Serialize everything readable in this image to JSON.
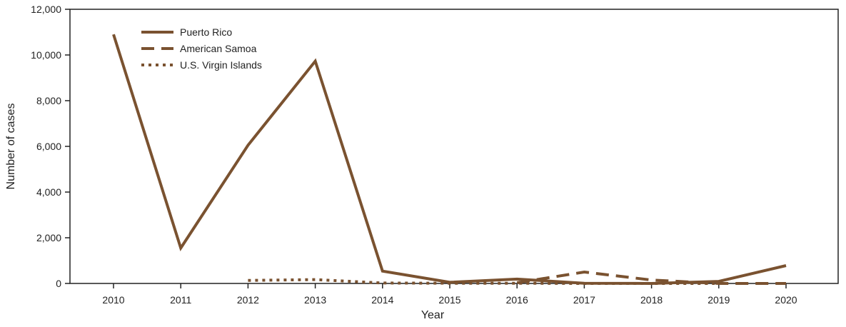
{
  "chart_data": {
    "type": "line",
    "xlabel": "Year",
    "ylabel": "Number of cases",
    "ylim": [
      0,
      12000
    ],
    "yticks": [
      0,
      2000,
      4000,
      6000,
      8000,
      10000,
      12000
    ],
    "ytick_labels": [
      "0",
      "2,000",
      "4,000",
      "6,000",
      "8,000",
      "10,000",
      "12,000"
    ],
    "x": [
      "2010",
      "2011",
      "2012",
      "2013",
      "2014",
      "2015",
      "2016",
      "2017",
      "2018",
      "2019",
      "2020"
    ],
    "legend_position": "top-left",
    "grid": false,
    "series": [
      {
        "name": "Puerto Rico",
        "style": "solid",
        "color": "#7a5230",
        "values": [
          10900,
          1550,
          6050,
          9730,
          540,
          50,
          190,
          10,
          0,
          90,
          780
        ]
      },
      {
        "name": "American Samoa",
        "style": "dashed",
        "color": "#7a5230",
        "values": [
          null,
          null,
          null,
          null,
          null,
          null,
          30,
          500,
          150,
          0,
          0
        ]
      },
      {
        "name": "U.S. Virgin Islands",
        "style": "dotted",
        "color": "#7a5230",
        "values": [
          null,
          null,
          130,
          170,
          20,
          10,
          10,
          0,
          0,
          0,
          null
        ]
      }
    ]
  }
}
